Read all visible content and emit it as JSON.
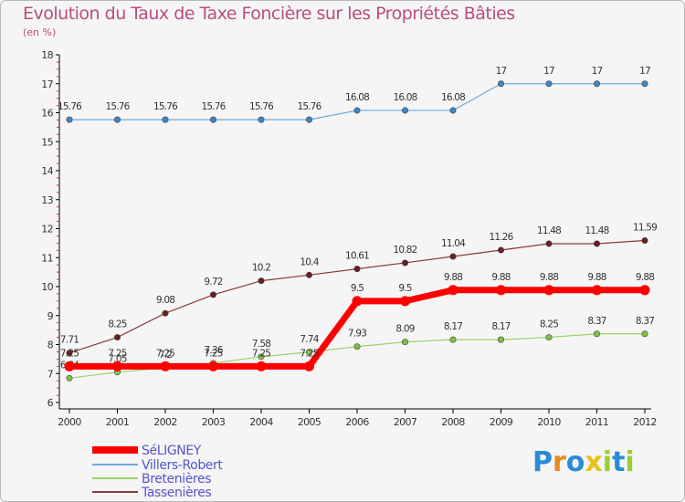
{
  "title": "Evolution du Taux de Taxe Foncière sur les Propriétés Bâties",
  "subtitle": "(en %)",
  "logo": {
    "letters": [
      "P",
      "r",
      "o",
      "x",
      "i",
      "t",
      "i"
    ],
    "colors": [
      "#2a8bd6",
      "#e88a1a",
      "#2a8bd6",
      "#e8c21a",
      "#9acd32",
      "#2a8bd6",
      "#9acd32"
    ]
  },
  "chart_data": {
    "type": "line",
    "title": "Evolution du Taux de Taxe Foncière sur les Propriétés Bâties",
    "ylabel": "(en %)",
    "xlabel": "",
    "ylim": [
      6,
      18
    ],
    "yticks": [
      "6",
      "7",
      "8",
      "9",
      "10",
      "11",
      "12",
      "13",
      "14",
      "15",
      "16",
      "17",
      "18"
    ],
    "x": [
      "2000",
      "2001",
      "2002",
      "2003",
      "2004",
      "2005",
      "2006",
      "2007",
      "2008",
      "2009",
      "2010",
      "2011",
      "2012"
    ],
    "series": [
      {
        "name": "Villers-Robert",
        "color": "#6fa8dc",
        "marker": "#3a87c9",
        "line_width": 1.2,
        "values": [
          15.76,
          15.76,
          15.76,
          15.76,
          15.76,
          15.76,
          16.08,
          16.08,
          16.08,
          17,
          17,
          17,
          17
        ],
        "labels": [
          "15.76",
          "15.76",
          "15.76",
          "15.76",
          "15.76",
          "15.76",
          "16.08",
          "16.08",
          "16.08",
          "17",
          "17",
          "17",
          "17"
        ]
      },
      {
        "name": "Tassenières",
        "color": "#8b3a3a",
        "marker": "#6b1f1f",
        "line_width": 1.2,
        "values": [
          7.71,
          8.25,
          9.08,
          9.72,
          10.2,
          10.4,
          10.61,
          10.82,
          11.04,
          11.26,
          11.48,
          11.48,
          11.59
        ],
        "labels": [
          "7.71",
          "8.25",
          "9.08",
          "9.72",
          "10.2",
          "10.4",
          "10.61",
          "10.82",
          "11.04",
          "11.26",
          "11.48",
          "11.48",
          "11.59"
        ]
      },
      {
        "name": "Bretenières",
        "color": "#9ad36a",
        "marker": "#7cc242",
        "line_width": 1.2,
        "values": [
          6.84,
          7.05,
          7.2,
          7.36,
          7.58,
          7.74,
          7.93,
          8.09,
          8.17,
          8.17,
          8.25,
          8.37,
          8.37
        ],
        "labels": [
          "6.84",
          "7.05",
          "7.2",
          "7.36",
          "7.58",
          "7.74",
          "7.93",
          "8.09",
          "8.17",
          "8.17",
          "8.25",
          "8.37",
          "8.37"
        ]
      },
      {
        "name": "SéLIGNEY",
        "color": "#ff0000",
        "marker": "#ff0000",
        "line_width": 7,
        "values": [
          7.25,
          7.25,
          7.25,
          7.25,
          7.25,
          7.25,
          9.5,
          9.5,
          9.88,
          9.88,
          9.88,
          9.88,
          9.88
        ],
        "labels": [
          "7.25",
          "7.25",
          "7.25",
          "7.25",
          "7.25",
          "7.25",
          "9.5",
          "9.5",
          "9.88",
          "9.88",
          "9.88",
          "9.88",
          "9.88"
        ]
      }
    ],
    "legend": [
      "SéLIGNEY",
      "Villers-Robert",
      "Bretenières",
      "Tassenières"
    ],
    "legend_position": "bottom-left",
    "grid": false
  }
}
